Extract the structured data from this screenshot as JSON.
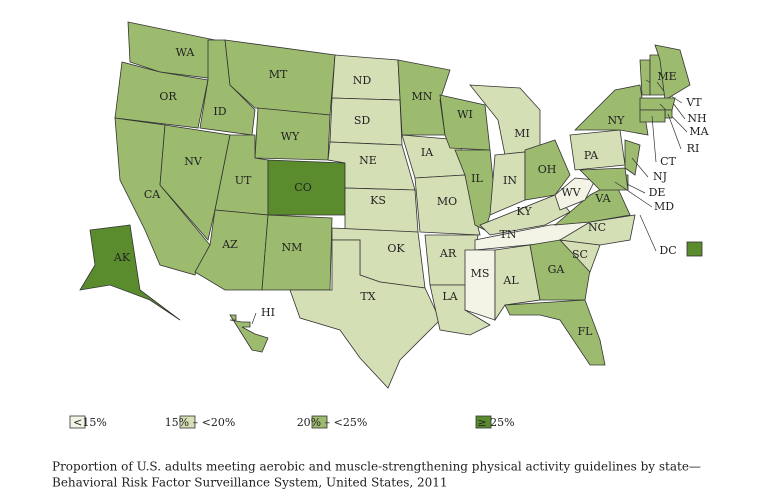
{
  "states": [
    {
      "label": "WA",
      "color": "#9dbb6e"
    },
    {
      "label": "OR",
      "color": "#9dbb6e"
    },
    {
      "label": "CA",
      "color": "#9dbb6e"
    },
    {
      "label": "NV",
      "color": "#9dbb6e"
    },
    {
      "label": "ID",
      "color": "#9dbb6e"
    },
    {
      "label": "MT",
      "color": "#9dbb6e"
    },
    {
      "label": "WY",
      "color": "#9dbb6e"
    },
    {
      "label": "UT",
      "color": "#9dbb6e"
    },
    {
      "label": "CO",
      "color": "#5a8c2e"
    },
    {
      "label": "AZ",
      "color": "#9dbb6e"
    },
    {
      "label": "NM",
      "color": "#9dbb6e"
    },
    {
      "label": "ND",
      "color": "#d4dfb6"
    },
    {
      "label": "SD",
      "color": "#d4dfb6"
    },
    {
      "label": "NE",
      "color": "#d4dfb6"
    },
    {
      "label": "KS",
      "color": "#d4dfb6"
    },
    {
      "label": "OK",
      "color": "#d4dfb6"
    },
    {
      "label": "TX",
      "color": "#d4dfb6"
    },
    {
      "label": "MN",
      "color": "#9dbb6e"
    },
    {
      "label": "IA",
      "color": "#d4dfb6"
    },
    {
      "label": "MO",
      "color": "#d4dfb6"
    },
    {
      "label": "AR",
      "color": "#d4dfb6"
    },
    {
      "label": "LA",
      "color": "#d4dfb6"
    },
    {
      "label": "WI",
      "color": "#9dbb6e"
    },
    {
      "label": "IL",
      "color": "#9dbb6e"
    },
    {
      "label": "MI",
      "color": "#d4dfb6"
    },
    {
      "label": "IN",
      "color": "#d4dfb6"
    },
    {
      "label": "OH",
      "color": "#9dbb6e"
    },
    {
      "label": "KY",
      "color": "#d4dfb6"
    },
    {
      "label": "TN",
      "color": "#f4f4e6"
    },
    {
      "label": "MS",
      "color": "#f4f4e6"
    },
    {
      "label": "AL",
      "color": "#d4dfb6"
    },
    {
      "label": "GA",
      "color": "#9dbb6e"
    },
    {
      "label": "FL",
      "color": "#9dbb6e"
    },
    {
      "label": "SC",
      "color": "#d4dfb6"
    },
    {
      "label": "NC",
      "color": "#d4dfb6"
    },
    {
      "label": "VA",
      "color": "#9dbb6e"
    },
    {
      "label": "WV",
      "color": "#f4f4e6"
    },
    {
      "label": "PA",
      "color": "#d4dfb6"
    },
    {
      "label": "NY",
      "color": "#9dbb6e"
    },
    {
      "label": "VT",
      "color": "#9dbb6e"
    },
    {
      "label": "NH",
      "color": "#9dbb6e"
    },
    {
      "label": "ME",
      "color": "#9dbb6e"
    },
    {
      "label": "MA",
      "color": "#9dbb6e"
    },
    {
      "label": "RI",
      "color": "#9dbb6e"
    },
    {
      "label": "CT",
      "color": "#9dbb6e"
    },
    {
      "label": "NJ",
      "color": "#9dbb6e"
    },
    {
      "label": "DE",
      "color": "#9dbb6e"
    },
    {
      "label": "MD",
      "color": "#9dbb6e"
    },
    {
      "label": "DC",
      "color": "#5a8c2e"
    },
    {
      "label": "AK",
      "color": "#5a8c2e"
    },
    {
      "label": "HI",
      "color": "#9dbb6e"
    }
  ],
  "legend": [
    {
      "label": "<15%",
      "color": "#f4f4e6"
    },
    {
      "label": "15% – <20%",
      "color": "#d4dfb6"
    },
    {
      "label": "20% – <25%",
      "color": "#9dbb6e"
    },
    {
      "label": "≥ 25%",
      "color": "#5a8c2e"
    }
  ],
  "caption": [
    "Proportion of U.S. adults meeting aerobic and muscle-strengthening physical activity guidelines by state—",
    "Behavioral Risk Factor Surveillance System, United States, 2011"
  ]
}
